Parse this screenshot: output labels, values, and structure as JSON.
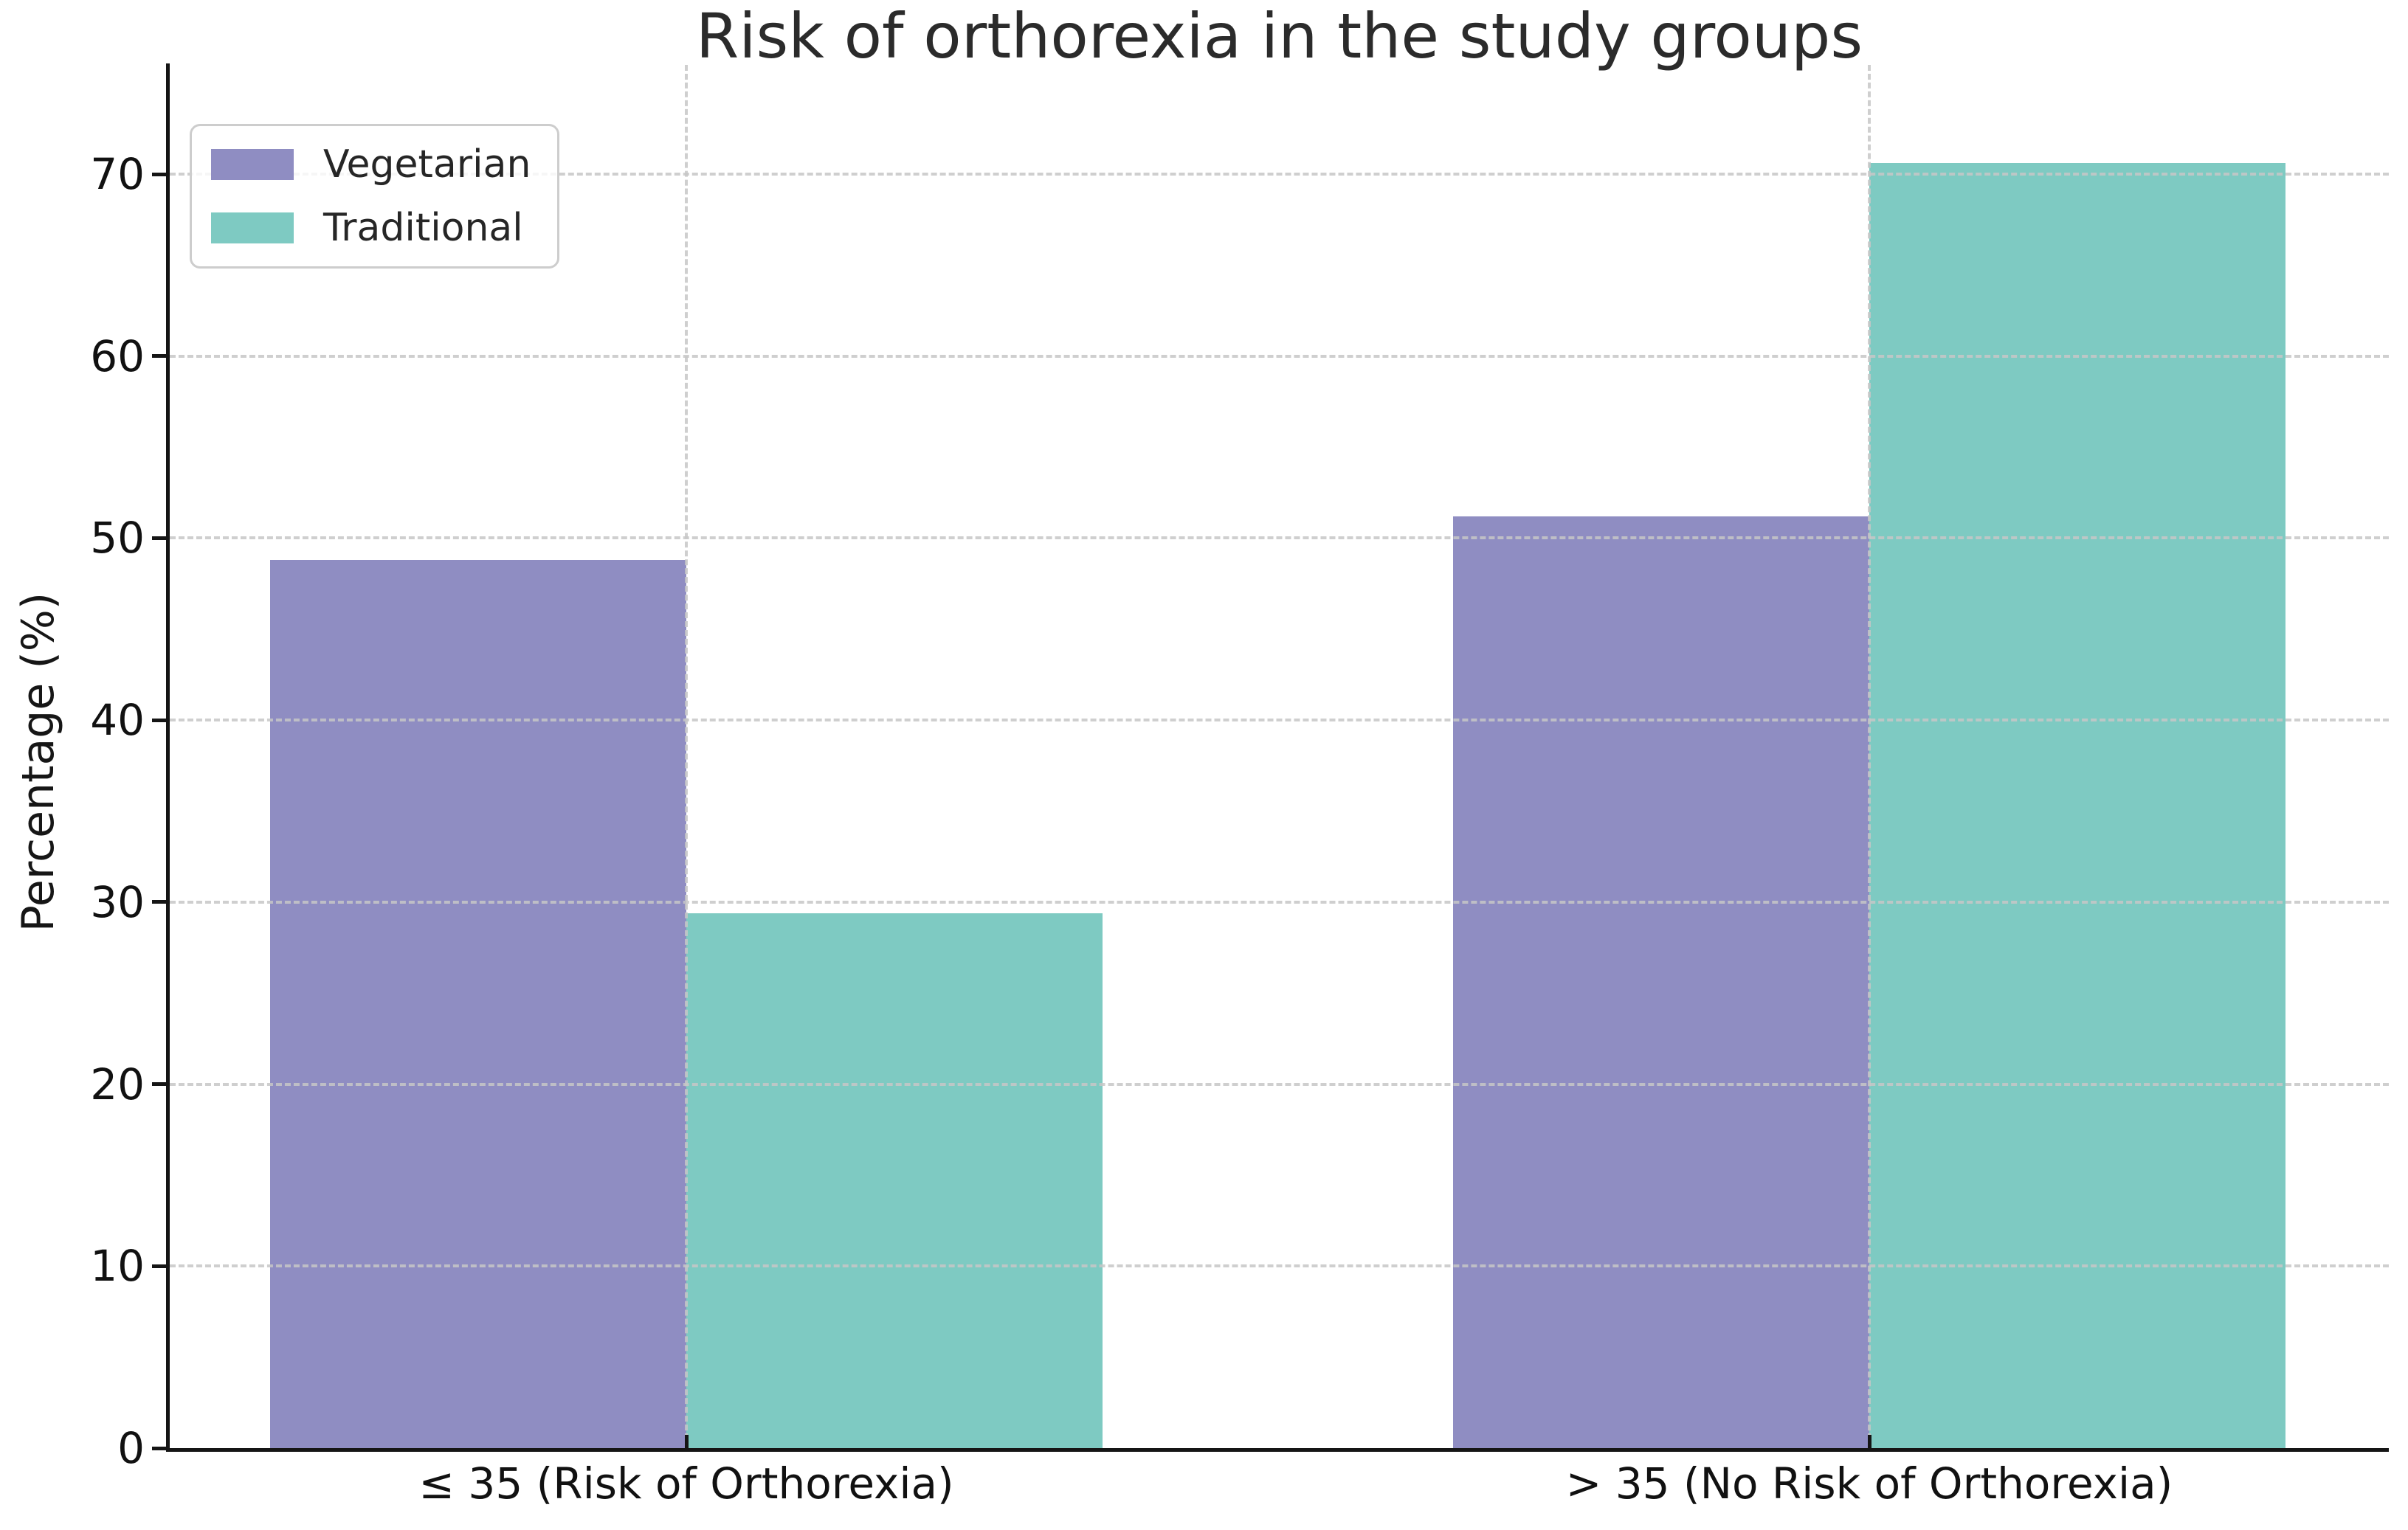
{
  "figure": {
    "background": "#ffffff"
  },
  "chart_data": {
    "type": "bar",
    "title": "Risk of orthorexia in the study groups",
    "categories": [
      "≤ 35 (Risk of Orthorexia)",
      "> 35 (No Risk of Orthorexia)"
    ],
    "series": [
      {
        "name": "Vegetarian",
        "color": "#8f8dc2",
        "values": [
          48.8,
          51.2
        ]
      },
      {
        "name": "Traditional",
        "color": "#7ecac2",
        "values": [
          29.4,
          70.6
        ]
      }
    ],
    "xlabel": "",
    "ylabel": "Percentage (%)",
    "ylim": [
      0,
      76
    ],
    "yticks": [
      0,
      10,
      20,
      30,
      40,
      50,
      60,
      70
    ],
    "grid": "dashed gray gridlines, horizontal at each ytick and vertical at each category center, drawn over bars",
    "legend_position": "upper left",
    "colors": {
      "spine": "#151515",
      "gridline": "#c7c7c7",
      "title_text": "#2b2b2b",
      "tick_text": "#111111",
      "legend_border": "#cdcdcd"
    }
  }
}
